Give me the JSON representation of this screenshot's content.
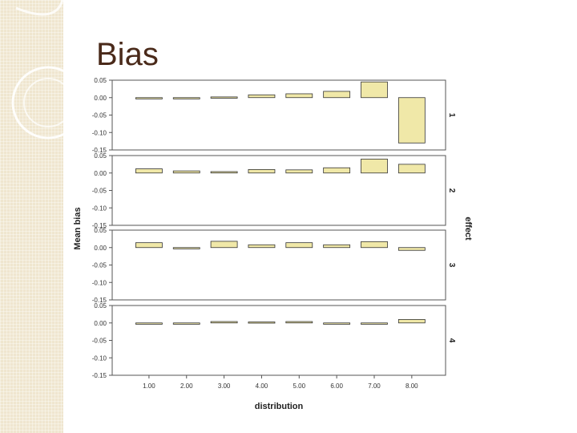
{
  "slide": {
    "title": "Bias"
  },
  "chart_data": {
    "type": "bar",
    "xlabel": "distribution",
    "ylabel": "Mean bias",
    "facet_label": "effect",
    "categories": [
      "1.00",
      "2.00",
      "3.00",
      "4.00",
      "5.00",
      "6.00",
      "7.00",
      "8.00"
    ],
    "yticks": [
      "0.05",
      "0.00",
      "-0.05",
      "-0.10",
      "-0.15"
    ],
    "ylim": [
      -0.15,
      0.05
    ],
    "grid": false,
    "bar_color": "#f0e8a8",
    "panels": [
      {
        "name": "1",
        "values": [
          0.0,
          0.0,
          0.002,
          0.008,
          0.011,
          0.018,
          0.045,
          -0.13
        ]
      },
      {
        "name": "2",
        "values": [
          0.012,
          0.006,
          0.004,
          0.01,
          0.009,
          0.015,
          0.04,
          0.025
        ]
      },
      {
        "name": "3",
        "values": [
          0.014,
          0.0,
          0.018,
          0.008,
          0.014,
          0.008,
          0.017,
          -0.008
        ]
      },
      {
        "name": "4",
        "values": [
          0.0,
          0.0,
          0.004,
          0.003,
          0.004,
          0.0,
          0.0,
          0.01
        ]
      }
    ]
  }
}
